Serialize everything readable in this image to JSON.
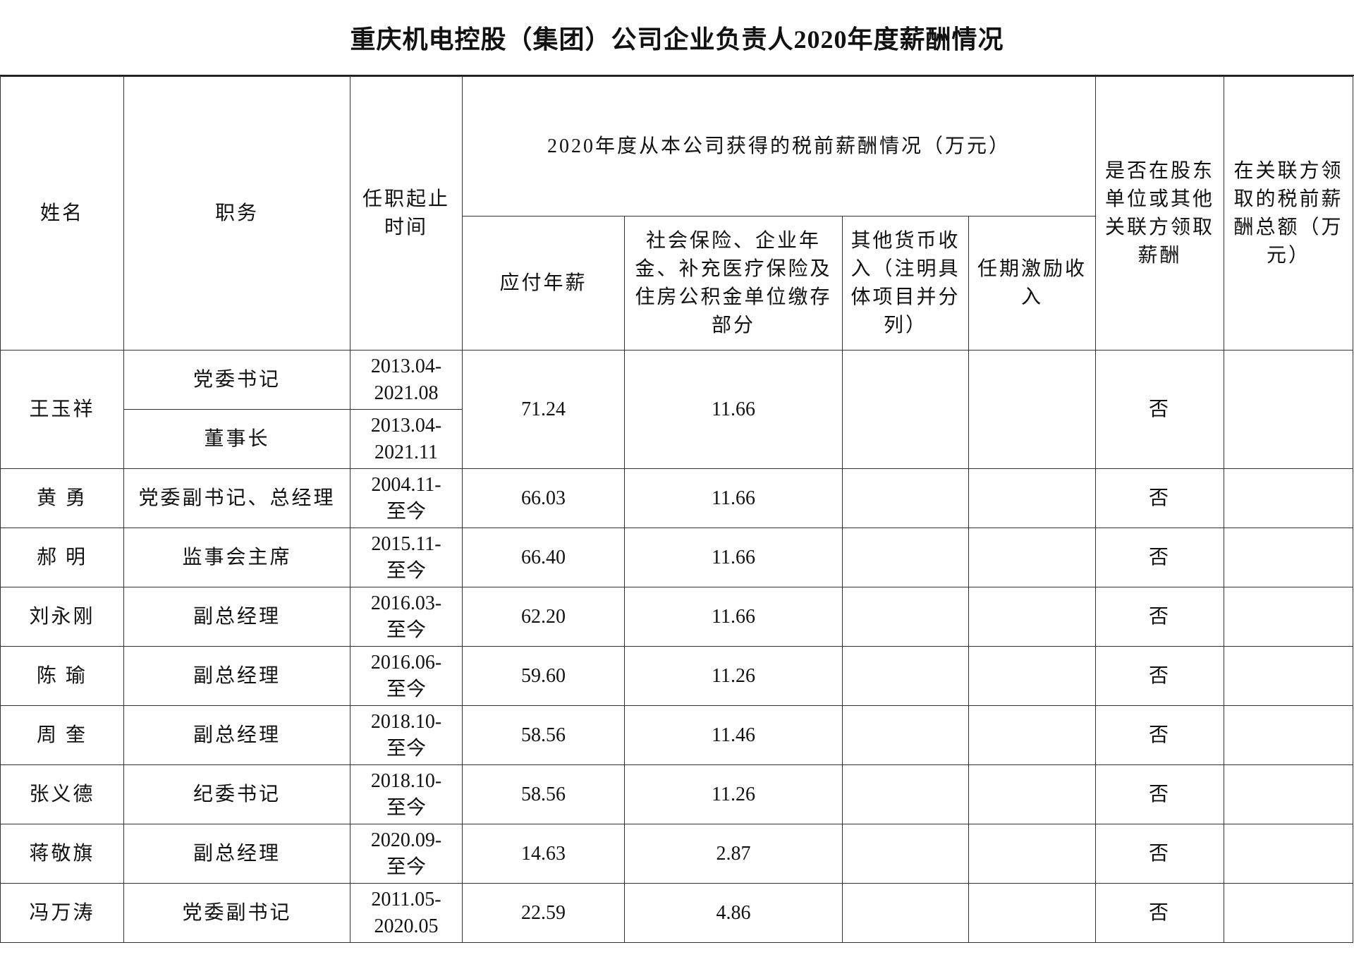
{
  "title": "重庆机电控股（集团）公司企业负责人2020年度薪酬情况",
  "headers": {
    "name": "姓名",
    "position": "职务",
    "term": "任职起止时间",
    "group": "2020年度从本公司获得的税前薪酬情况（万元）",
    "annual_pay": "应付年薪",
    "insurance": "社会保险、企业年金、补充医疗保险及住房公积金单位缴存部分",
    "other_income": "其他货币收入（注明具体项目并分列）",
    "incentive": "任期激励收入",
    "related_paid": "是否在股东单位或其他关联方领取薪酬",
    "related_total": "在关联方领取的税前薪酬总额（万元）"
  },
  "first_person": {
    "name": "王玉祥",
    "roles": [
      {
        "position": "党委书记",
        "start": "2013.04-",
        "end": "2021.08"
      },
      {
        "position": "董事长",
        "start": "2013.04-",
        "end": "2021.11"
      }
    ],
    "annual_pay": "71.24",
    "insurance": "11.66",
    "related_paid": "否"
  },
  "rows": [
    {
      "name": "黄  勇",
      "position": "党委副书记、总经理",
      "start": "2004.11-",
      "end": "至今",
      "annual_pay": "66.03",
      "insurance": "11.66",
      "related_paid": "否"
    },
    {
      "name": "郝  明",
      "position": "监事会主席",
      "start": "2015.11-",
      "end": "至今",
      "annual_pay": "66.40",
      "insurance": "11.66",
      "related_paid": "否"
    },
    {
      "name": "刘永刚",
      "position": "副总经理",
      "start": "2016.03-",
      "end": "至今",
      "annual_pay": "62.20",
      "insurance": "11.66",
      "related_paid": "否"
    },
    {
      "name": "陈  瑜",
      "position": "副总经理",
      "start": "2016.06-",
      "end": "至今",
      "annual_pay": "59.60",
      "insurance": "11.26",
      "related_paid": "否"
    },
    {
      "name": "周  奎",
      "position": "副总经理",
      "start": "2018.10-",
      "end": "至今",
      "annual_pay": "58.56",
      "insurance": "11.46",
      "related_paid": "否"
    },
    {
      "name": "张义德",
      "position": "纪委书记",
      "start": "2018.10-",
      "end": "至今",
      "annual_pay": "58.56",
      "insurance": "11.26",
      "related_paid": "否"
    },
    {
      "name": "蒋敬旗",
      "position": "副总经理",
      "start": "2020.09-",
      "end": "至今",
      "annual_pay": "14.63",
      "insurance": "2.87",
      "related_paid": "否"
    },
    {
      "name": "冯万涛",
      "position": "党委副书记",
      "start": "2011.05-",
      "end": "2020.05",
      "annual_pay": "22.59",
      "insurance": "4.86",
      "related_paid": "否"
    }
  ]
}
